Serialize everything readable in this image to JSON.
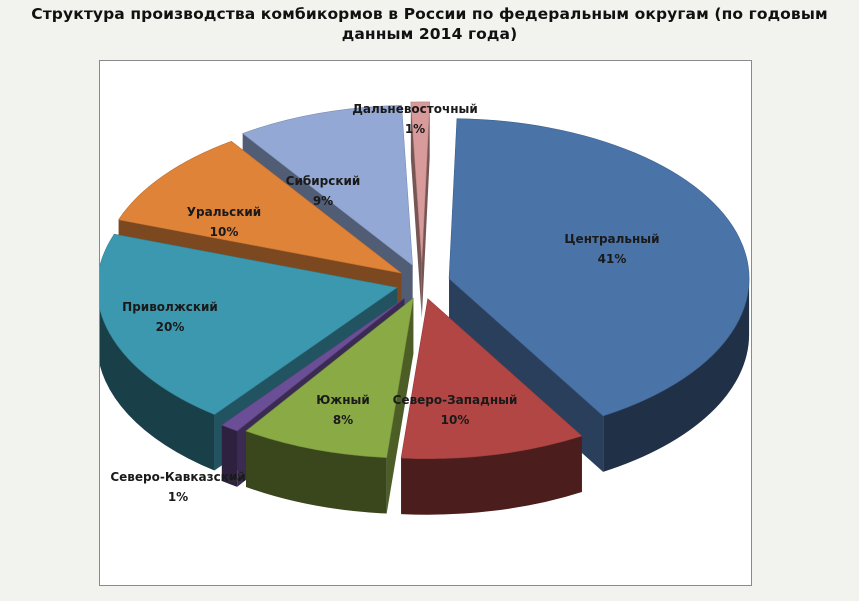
{
  "title": "Структура производства комбикормов в России по федеральным округам (по годовым данным 2014 года)",
  "chart_data": {
    "type": "pie",
    "title": "Структура производства комбикормов в России по федеральным округам (по годовым данным 2014 года)",
    "three_d": true,
    "exploded": true,
    "legend": "none",
    "slices": [
      {
        "label": "Центральный",
        "value": 41,
        "pct_text": "41%",
        "color": "#4a73a8"
      },
      {
        "label": "Северо-Западный",
        "value": 10,
        "pct_text": "10%",
        "color": "#b24645"
      },
      {
        "label": "Южный",
        "value": 8,
        "pct_text": "8%",
        "color": "#8aaa45"
      },
      {
        "label": "Северо-Кавказский",
        "value": 1,
        "pct_text": "1%",
        "color": "#6b4f96"
      },
      {
        "label": "Приволжский",
        "value": 20,
        "pct_text": "20%",
        "color": "#3c98ae"
      },
      {
        "label": "Уральский",
        "value": 10,
        "pct_text": "10%",
        "color": "#df8338"
      },
      {
        "label": "Сибирский",
        "value": 9,
        "pct_text": "9%",
        "color": "#93a8d4"
      },
      {
        "label": "Дальневосточный",
        "value": 1,
        "pct_text": "1%",
        "color": "#d89a9a"
      }
    ]
  }
}
